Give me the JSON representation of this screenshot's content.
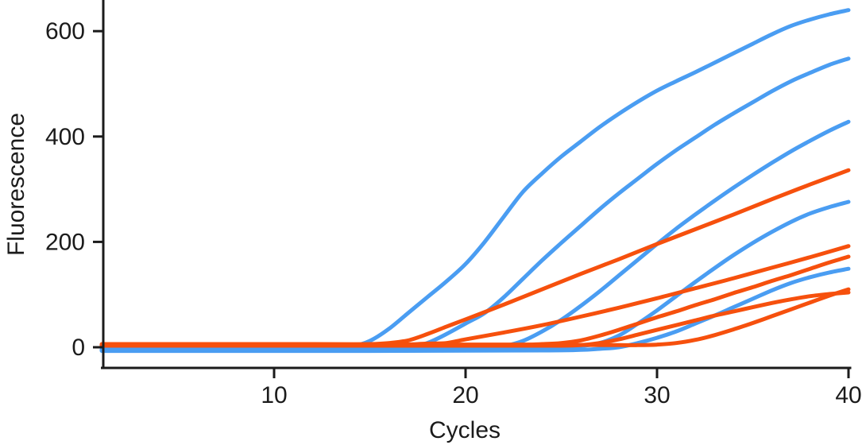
{
  "chart_data": {
    "type": "line",
    "title": "",
    "xlabel": "Cycles",
    "ylabel": "Fluorescence",
    "x_ticks": [
      10,
      20,
      30,
      40
    ],
    "y_ticks": [
      0,
      200,
      400,
      600
    ],
    "xlim": [
      1,
      40
    ],
    "ylim": [
      -40,
      660
    ],
    "grid": false,
    "legend": "none",
    "colors": {
      "blue": "#4A9DF2",
      "orange": "#F6500D",
      "axis": "#1b1b1b"
    },
    "series": [
      {
        "name": "blue-1",
        "color_key": "blue",
        "points": [
          [
            1,
            -5
          ],
          [
            6,
            -5
          ],
          [
            10,
            -4
          ],
          [
            12,
            -3
          ],
          [
            13,
            -2
          ],
          [
            14,
            1
          ],
          [
            15,
            12
          ],
          [
            16,
            35
          ],
          [
            17,
            65
          ],
          [
            18,
            95
          ],
          [
            19,
            125
          ],
          [
            20,
            158
          ],
          [
            21,
            200
          ],
          [
            22,
            248
          ],
          [
            23,
            295
          ],
          [
            24,
            330
          ],
          [
            25,
            362
          ],
          [
            26,
            390
          ],
          [
            27,
            418
          ],
          [
            28,
            443
          ],
          [
            29,
            466
          ],
          [
            30,
            487
          ],
          [
            31,
            505
          ],
          [
            32,
            522
          ],
          [
            33,
            540
          ],
          [
            34,
            558
          ],
          [
            35,
            576
          ],
          [
            36,
            594
          ],
          [
            37,
            610
          ],
          [
            38,
            622
          ],
          [
            39,
            632
          ],
          [
            40,
            640
          ]
        ]
      },
      {
        "name": "blue-2",
        "color_key": "blue",
        "points": [
          [
            1,
            -6
          ],
          [
            8,
            -6
          ],
          [
            14,
            -5
          ],
          [
            16,
            -3
          ],
          [
            17,
            0
          ],
          [
            18,
            8
          ],
          [
            19,
            25
          ],
          [
            20,
            45
          ],
          [
            21,
            65
          ],
          [
            22,
            95
          ],
          [
            23,
            130
          ],
          [
            24,
            165
          ],
          [
            25,
            198
          ],
          [
            26,
            230
          ],
          [
            27,
            262
          ],
          [
            28,
            292
          ],
          [
            29,
            320
          ],
          [
            30,
            348
          ],
          [
            31,
            374
          ],
          [
            32,
            398
          ],
          [
            33,
            422
          ],
          [
            34,
            444
          ],
          [
            35,
            465
          ],
          [
            36,
            486
          ],
          [
            37,
            505
          ],
          [
            38,
            521
          ],
          [
            39,
            536
          ],
          [
            40,
            548
          ]
        ]
      },
      {
        "name": "blue-3",
        "color_key": "blue",
        "points": [
          [
            1,
            -5
          ],
          [
            10,
            -5
          ],
          [
            18,
            -4
          ],
          [
            20,
            -4
          ],
          [
            21,
            -2
          ],
          [
            22,
            2
          ],
          [
            23,
            12
          ],
          [
            24,
            30
          ],
          [
            25,
            52
          ],
          [
            26,
            78
          ],
          [
            27,
            106
          ],
          [
            28,
            136
          ],
          [
            29,
            166
          ],
          [
            30,
            196
          ],
          [
            31,
            225
          ],
          [
            32,
            252
          ],
          [
            33,
            278
          ],
          [
            34,
            303
          ],
          [
            35,
            327
          ],
          [
            36,
            350
          ],
          [
            37,
            372
          ],
          [
            38,
            392
          ],
          [
            39,
            411
          ],
          [
            40,
            428
          ]
        ]
      },
      {
        "name": "blue-4",
        "color_key": "blue",
        "points": [
          [
            1,
            -4
          ],
          [
            12,
            -4
          ],
          [
            20,
            -4
          ],
          [
            24,
            -3
          ],
          [
            25,
            -1
          ],
          [
            26,
            2
          ],
          [
            27,
            8
          ],
          [
            28,
            22
          ],
          [
            29,
            45
          ],
          [
            30,
            70
          ],
          [
            31,
            97
          ],
          [
            32,
            124
          ],
          [
            33,
            150
          ],
          [
            34,
            175
          ],
          [
            35,
            198
          ],
          [
            36,
            219
          ],
          [
            37,
            238
          ],
          [
            38,
            254
          ],
          [
            39,
            266
          ],
          [
            40,
            276
          ]
        ]
      },
      {
        "name": "blue-5",
        "color_key": "blue",
        "points": [
          [
            1,
            -7
          ],
          [
            15,
            -7
          ],
          [
            24,
            -6
          ],
          [
            26,
            -5
          ],
          [
            27,
            -3
          ],
          [
            28,
            0
          ],
          [
            29,
            8
          ],
          [
            30,
            18
          ],
          [
            31,
            30
          ],
          [
            32,
            45
          ],
          [
            33,
            60
          ],
          [
            34,
            76
          ],
          [
            35,
            92
          ],
          [
            36,
            108
          ],
          [
            37,
            122
          ],
          [
            38,
            133
          ],
          [
            39,
            142
          ],
          [
            40,
            149
          ]
        ]
      },
      {
        "name": "orange-1",
        "color_key": "orange",
        "points": [
          [
            1,
            5
          ],
          [
            8,
            5
          ],
          [
            13,
            5
          ],
          [
            15,
            6
          ],
          [
            16,
            8
          ],
          [
            17,
            13
          ],
          [
            18,
            25
          ],
          [
            19,
            39
          ],
          [
            20,
            53
          ],
          [
            22,
            81
          ],
          [
            24,
            110
          ],
          [
            26,
            139
          ],
          [
            28,
            167
          ],
          [
            30,
            196
          ],
          [
            32,
            224
          ],
          [
            34,
            252
          ],
          [
            36,
            281
          ],
          [
            38,
            309
          ],
          [
            40,
            336
          ]
        ]
      },
      {
        "name": "orange-2",
        "color_key": "orange",
        "points": [
          [
            1,
            4
          ],
          [
            10,
            4
          ],
          [
            16,
            4
          ],
          [
            17,
            5
          ],
          [
            18,
            7
          ],
          [
            19,
            8
          ],
          [
            20,
            15
          ],
          [
            22,
            28
          ],
          [
            24,
            42
          ],
          [
            26,
            58
          ],
          [
            28,
            75
          ],
          [
            30,
            93
          ],
          [
            32,
            112
          ],
          [
            34,
            131
          ],
          [
            36,
            151
          ],
          [
            38,
            171
          ],
          [
            40,
            192
          ]
        ]
      },
      {
        "name": "orange-3",
        "color_key": "orange",
        "points": [
          [
            1,
            6
          ],
          [
            12,
            6
          ],
          [
            20,
            5
          ],
          [
            23,
            5
          ],
          [
            24,
            6
          ],
          [
            25,
            8
          ],
          [
            26,
            13
          ],
          [
            27,
            22
          ],
          [
            28,
            33
          ],
          [
            29,
            45
          ],
          [
            30,
            57
          ],
          [
            31,
            68
          ],
          [
            32,
            80
          ],
          [
            33,
            91
          ],
          [
            34,
            103
          ],
          [
            35,
            114
          ],
          [
            36,
            126
          ],
          [
            37,
            137
          ],
          [
            38,
            149
          ],
          [
            39,
            161
          ],
          [
            40,
            172
          ]
        ]
      },
      {
        "name": "orange-4",
        "color_key": "orange",
        "points": [
          [
            1,
            3
          ],
          [
            14,
            3
          ],
          [
            22,
            3
          ],
          [
            25,
            3
          ],
          [
            26,
            4
          ],
          [
            27,
            8
          ],
          [
            28,
            15
          ],
          [
            29,
            24
          ],
          [
            30,
            33
          ],
          [
            31,
            42
          ],
          [
            32,
            51
          ],
          [
            33,
            60
          ],
          [
            34,
            68
          ],
          [
            35,
            76
          ],
          [
            36,
            84
          ],
          [
            37,
            91
          ],
          [
            38,
            97
          ],
          [
            39,
            101
          ],
          [
            40,
            104
          ]
        ]
      },
      {
        "name": "orange-5",
        "color_key": "orange",
        "points": [
          [
            1,
            5
          ],
          [
            16,
            5
          ],
          [
            24,
            5
          ],
          [
            28,
            4
          ],
          [
            29,
            4
          ],
          [
            30,
            5
          ],
          [
            31,
            8
          ],
          [
            32,
            14
          ],
          [
            33,
            23
          ],
          [
            34,
            34
          ],
          [
            35,
            46
          ],
          [
            36,
            59
          ],
          [
            37,
            72
          ],
          [
            38,
            85
          ],
          [
            39,
            98
          ],
          [
            40,
            110
          ]
        ]
      }
    ]
  }
}
